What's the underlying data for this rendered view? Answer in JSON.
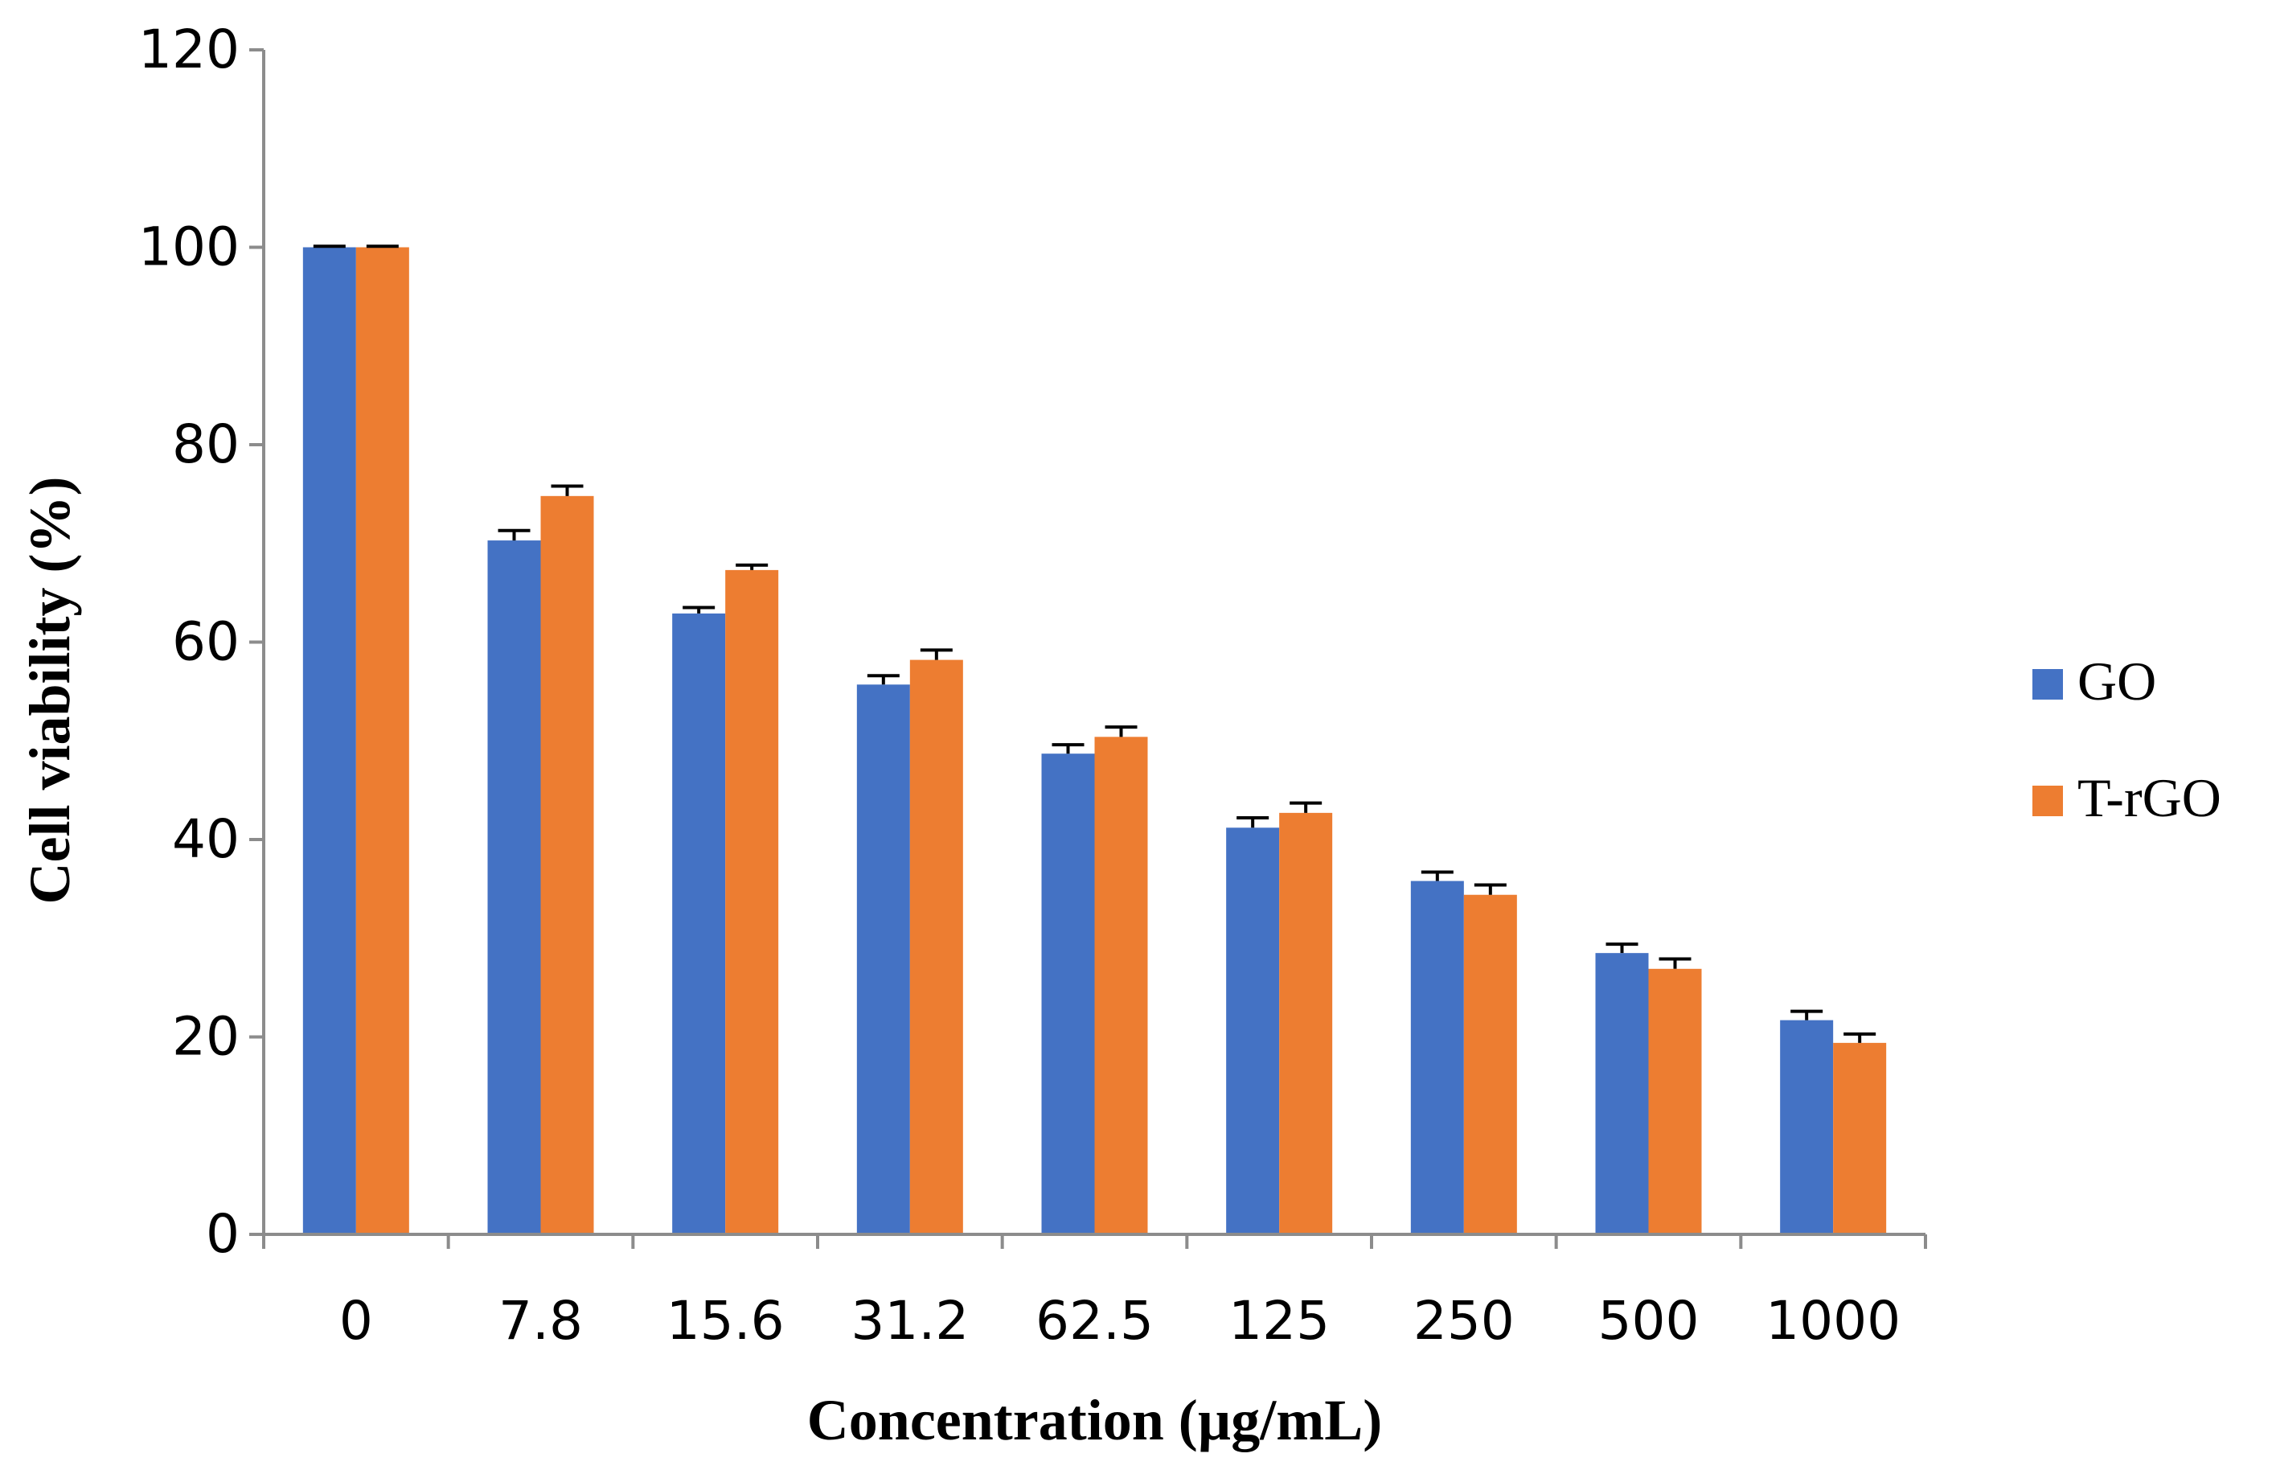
{
  "chart_data": {
    "type": "bar",
    "title": "",
    "xlabel": "Concentration (µg/mL)",
    "ylabel": "Cell viability (%)",
    "ylim": [
      0,
      120
    ],
    "yticks": [
      0,
      20,
      40,
      60,
      80,
      100,
      120
    ],
    "categories": [
      "0",
      "7.8",
      "15.6",
      "31.2",
      "62.5",
      "125",
      "250",
      "500",
      "1000"
    ],
    "series": [
      {
        "name": "GO",
        "color": "#4472C4",
        "values": [
          100,
          70.3,
          62.9,
          55.7,
          48.7,
          41.2,
          35.8,
          28.5,
          21.7
        ],
        "errors": [
          0.1,
          1.0,
          0.6,
          0.9,
          0.9,
          1.0,
          0.9,
          0.9,
          0.9
        ]
      },
      {
        "name": "T-rGO",
        "color": "#ED7D31",
        "values": [
          100,
          74.8,
          67.3,
          58.2,
          50.4,
          42.7,
          34.4,
          26.9,
          19.4
        ],
        "errors": [
          0.1,
          1.0,
          0.5,
          1.0,
          1.0,
          1.0,
          1.0,
          1.0,
          0.9
        ]
      }
    ],
    "legend_position": "right"
  }
}
